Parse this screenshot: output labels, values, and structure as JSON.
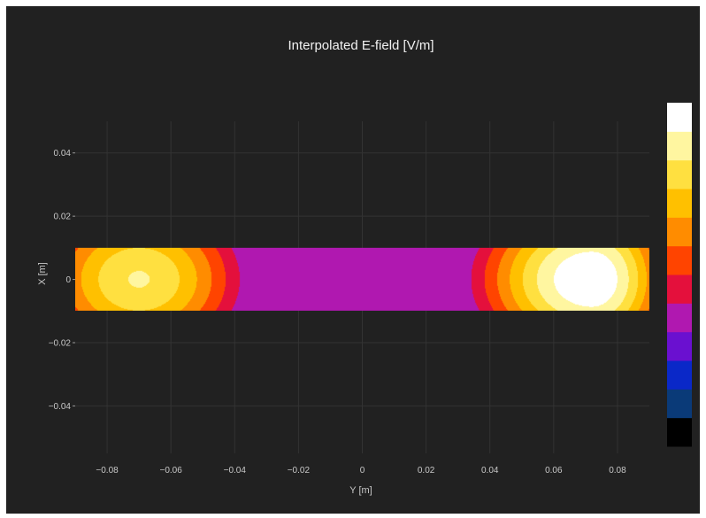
{
  "chart_data": {
    "type": "heatmap",
    "title": "Interpolated E-field [V/m]",
    "xlabel": "Y [m]",
    "ylabel": "X [m]",
    "xlim": [
      -0.09,
      0.09
    ],
    "ylim": [
      -0.055,
      0.05
    ],
    "x_ticks": [
      -0.08,
      -0.06,
      -0.04,
      -0.02,
      0,
      0.02,
      0.04,
      0.06,
      0.08
    ],
    "x_tick_labels": [
      "−0.08",
      "−0.06",
      "−0.04",
      "−0.02",
      "0",
      "0.02",
      "0.04",
      "0.06",
      "0.08"
    ],
    "y_ticks": [
      0.04,
      0.02,
      0,
      -0.02,
      -0.04
    ],
    "y_tick_labels": [
      "0.04",
      "0.02",
      "0",
      "−0.02",
      "−0.04"
    ],
    "grid": true,
    "field_region": {
      "y_range": [
        -0.09,
        0.09
      ],
      "x_range": [
        -0.01,
        0.01
      ]
    },
    "hot_spots": [
      {
        "y": -0.07,
        "x": 0.0,
        "level": 0.84
      },
      {
        "y": 0.072,
        "x": 0.0,
        "level": 1.0
      }
    ],
    "colorscale": [
      "#000000",
      "#0a3a78",
      "#0a28c8",
      "#6a10d0",
      "#b018b0",
      "#e4103c",
      "#ff4400",
      "#ff8c00",
      "#ffc000",
      "#ffe040",
      "#fff6a0",
      "#ffffff"
    ],
    "colorbar_visible": true,
    "background_color": "#212121",
    "grid_color": "#333333"
  }
}
